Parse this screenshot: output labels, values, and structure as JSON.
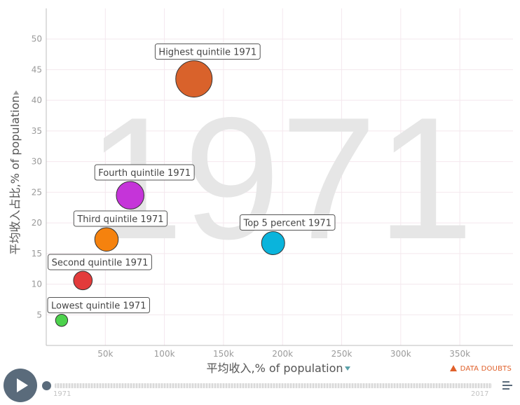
{
  "chart_data": {
    "type": "scatter",
    "year_watermark": "1971",
    "xlabel": "平均收入,% of population",
    "ylabel": "平均收入占比,% of population",
    "xlim": [
      0,
      395000
    ],
    "ylim": [
      0,
      55
    ],
    "x_ticks": [
      {
        "value": 50000,
        "label": "50k"
      },
      {
        "value": 100000,
        "label": "100k"
      },
      {
        "value": 150000,
        "label": "150k"
      },
      {
        "value": 200000,
        "label": "200k"
      },
      {
        "value": 250000,
        "label": "250k"
      },
      {
        "value": 300000,
        "label": "300k"
      },
      {
        "value": 350000,
        "label": "350k"
      }
    ],
    "y_ticks": [
      5,
      10,
      15,
      20,
      25,
      30,
      35,
      40,
      45,
      50
    ],
    "grid": true,
    "points": [
      {
        "label": "Highest quintile 1971",
        "x": 125000,
        "y": 43.5,
        "size": 43.5,
        "color": "#d9622b"
      },
      {
        "label": "Fourth quintile 1971",
        "x": 71000,
        "y": 24.5,
        "size": 24.5,
        "color": "#c534d9"
      },
      {
        "label": "Third quintile 1971",
        "x": 51000,
        "y": 17.3,
        "size": 17.3,
        "color": "#f5820e"
      },
      {
        "label": "Top 5 percent 1971",
        "x": 192000,
        "y": 16.7,
        "size": 16.7,
        "color": "#0ab4dc"
      },
      {
        "label": "Second quintile 1971",
        "x": 31000,
        "y": 10.6,
        "size": 10.6,
        "color": "#e33b3b"
      },
      {
        "label": "Lowest quintile 1971",
        "x": 13000,
        "y": 4.1,
        "size": 4.1,
        "color": "#4cd24c"
      }
    ]
  },
  "timeline": {
    "start_label": "1971",
    "end_label": "2017",
    "progress": 0
  },
  "warning_label": "DATA DOUBTS"
}
